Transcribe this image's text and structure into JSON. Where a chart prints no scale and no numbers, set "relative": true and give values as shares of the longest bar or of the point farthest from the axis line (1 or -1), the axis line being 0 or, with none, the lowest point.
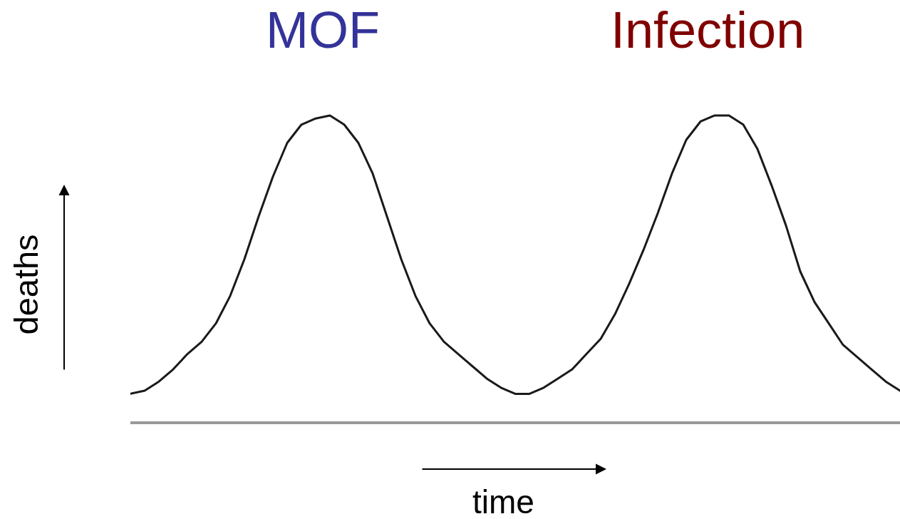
{
  "chart_data": {
    "type": "line",
    "relative": true,
    "categories": [
      null,
      null,
      null,
      null,
      null,
      null,
      null,
      null,
      null,
      null,
      null,
      null,
      null,
      null,
      null,
      null,
      null,
      null,
      null,
      null,
      null,
      null,
      null,
      null,
      null,
      null,
      null,
      null,
      null,
      null,
      null,
      null,
      null,
      null,
      null,
      null,
      null,
      null,
      null,
      null,
      null,
      null,
      null,
      null,
      null,
      null,
      null,
      null,
      null,
      null,
      null,
      null,
      null,
      null,
      null
    ],
    "series": [
      {
        "color": "#1a1a1a",
        "values": [
          0.09,
          0.1,
          0.13,
          0.17,
          0.22,
          0.26,
          0.32,
          0.41,
          0.53,
          0.67,
          0.8,
          0.91,
          0.97,
          0.99,
          1.0,
          0.97,
          0.91,
          0.81,
          0.67,
          0.53,
          0.41,
          0.32,
          0.26,
          0.22,
          0.18,
          0.14,
          0.11,
          0.09,
          0.09,
          0.11,
          0.14,
          0.17,
          0.22,
          0.27,
          0.35,
          0.45,
          0.56,
          0.68,
          0.81,
          0.92,
          0.98,
          1.0,
          1.0,
          0.97,
          0.89,
          0.77,
          0.64,
          0.49,
          0.39,
          0.32,
          0.25,
          0.21,
          0.17,
          0.13,
          0.1
        ]
      }
    ],
    "xlabel": "time",
    "ylabel": "deaths",
    "annotations": [
      "MOF",
      "Infection"
    ]
  }
}
